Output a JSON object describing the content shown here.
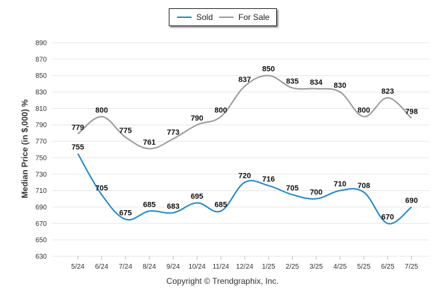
{
  "chart_data": {
    "type": "line",
    "ylabel": "Median Price (in $,000) %",
    "ylim": [
      630,
      890
    ],
    "yticks": [
      630,
      650,
      670,
      690,
      710,
      730,
      750,
      770,
      790,
      810,
      830,
      850,
      870,
      890
    ],
    "categories": [
      "5/24",
      "6/24",
      "7/24",
      "8/24",
      "9/24",
      "10/24",
      "11/24",
      "12/24",
      "1/25",
      "2/25",
      "3/25",
      "4/25",
      "5/25",
      "6/25",
      "7/25"
    ],
    "series": [
      {
        "name": "Sold",
        "color": "#1f86cc",
        "values": [
          755,
          705,
          675,
          685,
          683,
          695,
          685,
          720,
          716,
          705,
          700,
          710,
          708,
          670,
          690
        ]
      },
      {
        "name": "For Sale",
        "color": "#9a9a9a",
        "values": [
          779,
          800,
          775,
          761,
          773,
          790,
          800,
          837,
          850,
          835,
          834,
          830,
          800,
          823,
          798
        ]
      }
    ],
    "legend": "top-center",
    "grid": true
  },
  "footer": {
    "copyright": "Copyright © Trendgraphix, Inc."
  }
}
